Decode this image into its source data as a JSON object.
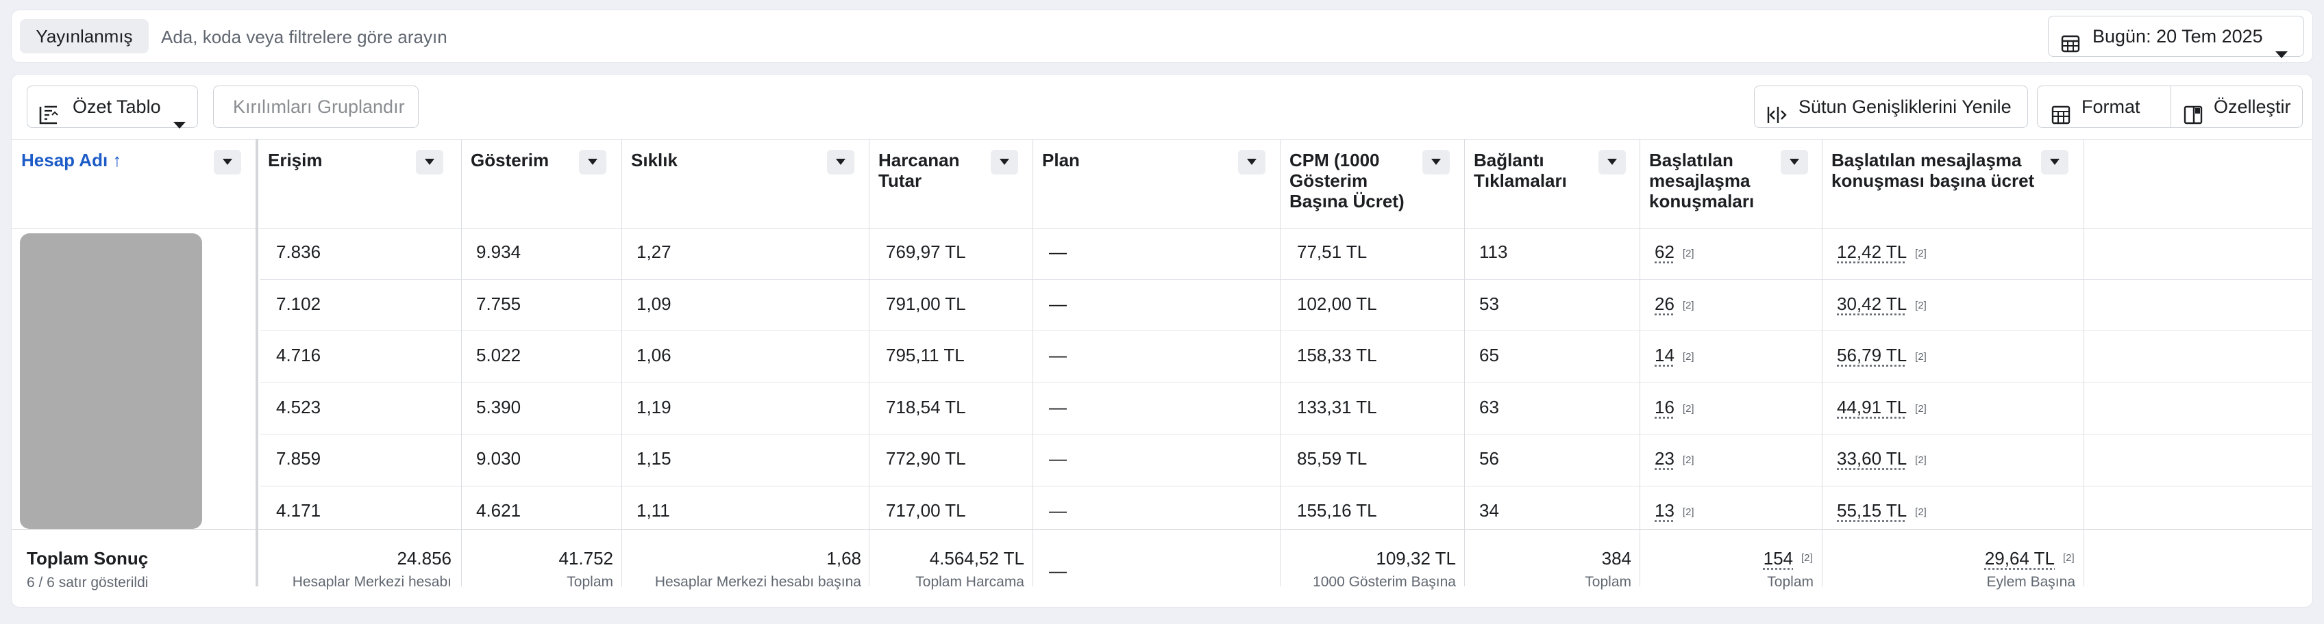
{
  "search": {
    "chip_label": "Yayınlanmış",
    "placeholder": "Ada, koda veya filtrelere göre arayın",
    "date_label": "Bugün: 20 Tem 2025"
  },
  "toolbar": {
    "pivot_label": "Özet Tablo",
    "group_label": "Kırılımları Gruplandır",
    "reset_widths_label": "Sütun Genişliklerini Yenile",
    "format_label": "Format",
    "customize_label": "Özelleştir"
  },
  "columns": [
    {
      "l1": "Hesap Adı ↑",
      "l2": "",
      "l3": ""
    },
    {
      "l1": "Erişim",
      "l2": "",
      "l3": ""
    },
    {
      "l1": "Gösterim",
      "l2": "",
      "l3": ""
    },
    {
      "l1": "Sıklık",
      "l2": "",
      "l3": ""
    },
    {
      "l1": "Harcanan",
      "l2": "Tutar",
      "l3": ""
    },
    {
      "l1": "Plan",
      "l2": "",
      "l3": ""
    },
    {
      "l1": "CPM (1000",
      "l2": "Gösterim",
      "l3": "Başına Ücret)"
    },
    {
      "l1": "Bağlantı",
      "l2": "Tıklamaları",
      "l3": ""
    },
    {
      "l1": "Başlatılan",
      "l2": "mesajlaşma",
      "l3": "konuşmaları"
    },
    {
      "l1": "Başlatılan mesajlaşma",
      "l2": "konuşması başına ücret",
      "l3": ""
    }
  ],
  "rows": [
    [
      "7.836",
      "9.934",
      "1,27",
      "769,97 TL",
      "—",
      "77,51 TL",
      "113",
      "62",
      "12,42 TL"
    ],
    [
      "7.102",
      "7.755",
      "1,09",
      "791,00 TL",
      "—",
      "102,00 TL",
      "53",
      "26",
      "30,42 TL"
    ],
    [
      "4.716",
      "5.022",
      "1,06",
      "795,11 TL",
      "—",
      "158,33 TL",
      "65",
      "14",
      "56,79 TL"
    ],
    [
      "4.523",
      "5.390",
      "1,19",
      "718,54 TL",
      "—",
      "133,31 TL",
      "63",
      "16",
      "44,91 TL"
    ],
    [
      "7.859",
      "9.030",
      "1,15",
      "772,90 TL",
      "—",
      "85,59 TL",
      "56",
      "23",
      "33,60 TL"
    ],
    [
      "4.171",
      "4.621",
      "1,11",
      "717,00 TL",
      "—",
      "155,16 TL",
      "34",
      "13",
      "55,15 TL"
    ]
  ],
  "ref_mark": "[2]",
  "totals": {
    "title": "Toplam Sonuç",
    "subtitle": "6 / 6 satır gösterildi",
    "values": [
      "24.856",
      "41.752",
      "1,68",
      "4.564,52 TL",
      "—",
      "109,32 TL",
      "384",
      "154",
      "29,64 TL"
    ],
    "subs": [
      "Hesaplar Merkezi hesabı",
      "Toplam",
      "Hesaplar Merkezi hesabı başına",
      "Toplam Harcama",
      "",
      "1000 Gösterim Başına",
      "Toplam",
      "Toplam",
      "Eylem Başına"
    ]
  }
}
